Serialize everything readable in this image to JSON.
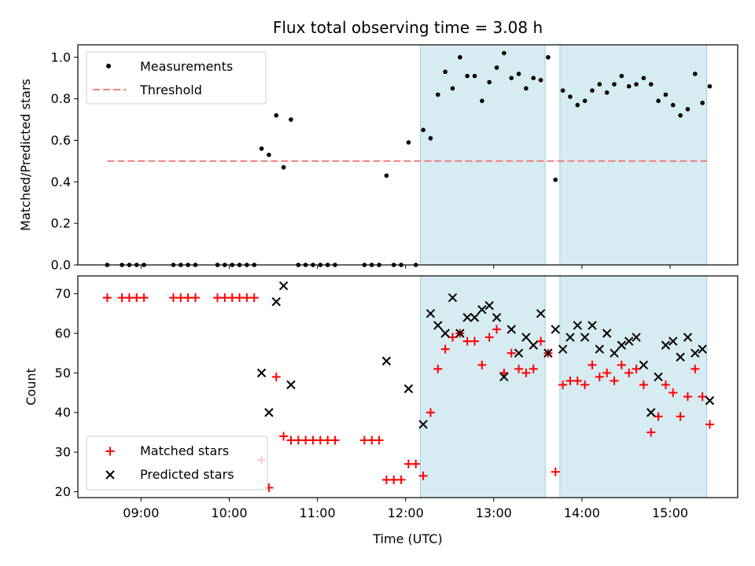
{
  "chart_data": [
    {
      "type": "scatter",
      "title": "Flux total observing time = 3.08 h",
      "xlabel": "",
      "ylabel": "Matched/Predicted stars",
      "xlim": [
        "08:17",
        "15:46"
      ],
      "ylim": [
        0.0,
        1.06
      ],
      "yticks": [
        0.0,
        0.2,
        0.4,
        0.6,
        0.8,
        1.0
      ],
      "ytick_labels": [
        "0.0",
        "0.2",
        "0.4",
        "0.6",
        "0.8",
        "1.0"
      ],
      "legend_position": "top-left",
      "shaded_intervals": [
        [
          "12:10",
          "13:35"
        ],
        [
          "13:45",
          "15:25"
        ]
      ],
      "threshold": {
        "name": "Threshold",
        "value": 0.5,
        "x_range": [
          "08:37",
          "15:25"
        ],
        "color": "#f08080"
      },
      "series": [
        {
          "name": "Measurements",
          "color": "#000000",
          "marker": "dot",
          "x": [
            "08:37",
            "08:47",
            "08:52",
            "08:57",
            "09:02",
            "09:22",
            "09:27",
            "09:32",
            "09:37",
            "09:52",
            "09:57",
            "10:02",
            "10:07",
            "10:12",
            "10:17",
            "10:22",
            "10:27",
            "10:32",
            "10:37",
            "10:42",
            "10:47",
            "10:52",
            "10:57",
            "11:02",
            "11:07",
            "11:12",
            "11:32",
            "11:37",
            "11:42",
            "11:47",
            "11:52",
            "11:57",
            "12:02",
            "12:07",
            "12:12",
            "12:17",
            "12:22",
            "12:27",
            "12:32",
            "12:37",
            "12:42",
            "12:47",
            "12:52",
            "12:57",
            "13:02",
            "13:07",
            "13:12",
            "13:17",
            "13:22",
            "13:27",
            "13:32",
            "13:37",
            "13:42",
            "13:47",
            "13:52",
            "13:57",
            "14:02",
            "14:07",
            "14:12",
            "14:17",
            "14:22",
            "14:27",
            "14:32",
            "14:37",
            "14:42",
            "14:47",
            "14:52",
            "14:57",
            "15:02",
            "15:07",
            "15:12",
            "15:17",
            "15:22",
            "15:27"
          ],
          "y": [
            0.0,
            0.0,
            0.0,
            0.0,
            0.0,
            0.0,
            0.0,
            0.0,
            0.0,
            0.0,
            0.0,
            0.0,
            0.0,
            0.0,
            0.0,
            0.56,
            0.53,
            0.72,
            0.47,
            0.7,
            0.0,
            0.0,
            0.0,
            0.0,
            0.0,
            0.0,
            0.0,
            0.0,
            0.0,
            0.43,
            0.0,
            0.0,
            0.59,
            0.0,
            0.65,
            0.61,
            0.82,
            0.93,
            0.85,
            1.0,
            0.91,
            0.91,
            0.79,
            0.88,
            0.95,
            1.02,
            0.9,
            0.92,
            0.85,
            0.9,
            0.89,
            1.0,
            0.41,
            0.84,
            0.81,
            0.77,
            0.79,
            0.84,
            0.87,
            0.83,
            0.87,
            0.91,
            0.86,
            0.87,
            0.9,
            0.87,
            0.79,
            0.82,
            0.77,
            0.72,
            0.75,
            0.92,
            0.78,
            0.86
          ]
        }
      ]
    },
    {
      "type": "scatter",
      "title": "",
      "xlabel": "Time (UTC)",
      "ylabel": "Count",
      "xlim": [
        "08:17",
        "15:46"
      ],
      "ylim": [
        18.5,
        74.5
      ],
      "xticks": [
        "09:00",
        "10:00",
        "11:00",
        "12:00",
        "13:00",
        "14:00",
        "15:00"
      ],
      "yticks": [
        20,
        30,
        40,
        50,
        60,
        70
      ],
      "ytick_labels": [
        "20",
        "30",
        "40",
        "50",
        "60",
        "70"
      ],
      "legend_position": "bottom-left",
      "shaded_intervals": [
        [
          "12:10",
          "13:35"
        ],
        [
          "13:45",
          "15:25"
        ]
      ],
      "series": [
        {
          "name": "Matched stars",
          "color": "#ff0000",
          "marker": "plus",
          "x": [
            "08:37",
            "08:47",
            "08:52",
            "08:57",
            "09:02",
            "09:22",
            "09:27",
            "09:32",
            "09:37",
            "09:52",
            "09:57",
            "10:02",
            "10:07",
            "10:12",
            "10:17",
            "10:22",
            "10:27",
            "10:32",
            "10:37",
            "10:42",
            "10:47",
            "10:52",
            "10:57",
            "11:02",
            "11:07",
            "11:12",
            "11:32",
            "11:37",
            "11:42",
            "11:47",
            "11:52",
            "11:57",
            "12:02",
            "12:07",
            "12:12",
            "12:17",
            "12:22",
            "12:27",
            "12:32",
            "12:37",
            "12:42",
            "12:47",
            "12:52",
            "12:57",
            "13:02",
            "13:07",
            "13:12",
            "13:17",
            "13:22",
            "13:27",
            "13:32",
            "13:37",
            "13:42",
            "13:47",
            "13:52",
            "13:57",
            "14:02",
            "14:07",
            "14:12",
            "14:17",
            "14:22",
            "14:27",
            "14:32",
            "14:37",
            "14:42",
            "14:47",
            "14:52",
            "14:57",
            "15:02",
            "15:07",
            "15:12",
            "15:17",
            "15:22",
            "15:27"
          ],
          "y": [
            69,
            69,
            69,
            69,
            69,
            69,
            69,
            69,
            69,
            69,
            69,
            69,
            69,
            69,
            69,
            28,
            21,
            49,
            34,
            33,
            33,
            33,
            33,
            33,
            33,
            33,
            33,
            33,
            33,
            23,
            23,
            23,
            27,
            27,
            24,
            40,
            51,
            56,
            59,
            60,
            58,
            58,
            52,
            59,
            61,
            50,
            55,
            51,
            50,
            51,
            58,
            55,
            25,
            47,
            48,
            48,
            47,
            52,
            49,
            50,
            48,
            52,
            50,
            51,
            47,
            35,
            39,
            47,
            45,
            39,
            44,
            51,
            44,
            37
          ]
        },
        {
          "name": "Predicted stars",
          "color": "#000000",
          "marker": "cross",
          "x": [
            "10:22",
            "10:27",
            "10:32",
            "10:37",
            "10:42",
            "11:47",
            "12:02",
            "12:12",
            "12:17",
            "12:22",
            "12:27",
            "12:32",
            "12:37",
            "12:42",
            "12:47",
            "12:52",
            "12:57",
            "13:02",
            "13:07",
            "13:12",
            "13:17",
            "13:22",
            "13:27",
            "13:32",
            "13:37",
            "13:42",
            "13:47",
            "13:52",
            "13:57",
            "14:02",
            "14:07",
            "14:12",
            "14:17",
            "14:22",
            "14:27",
            "14:32",
            "14:37",
            "14:42",
            "14:47",
            "14:52",
            "14:57",
            "15:02",
            "15:07",
            "15:12",
            "15:17",
            "15:22",
            "15:27"
          ],
          "y": [
            50,
            40,
            68,
            72,
            47,
            53,
            46,
            37,
            65,
            62,
            60,
            69,
            60,
            64,
            64,
            66,
            67,
            64,
            49,
            61,
            55,
            59,
            57,
            65,
            55,
            61,
            56,
            59,
            62,
            59,
            62,
            56,
            60,
            55,
            57,
            58,
            59,
            52,
            40,
            49,
            57,
            58,
            54,
            59,
            55,
            56,
            43
          ]
        }
      ]
    }
  ]
}
